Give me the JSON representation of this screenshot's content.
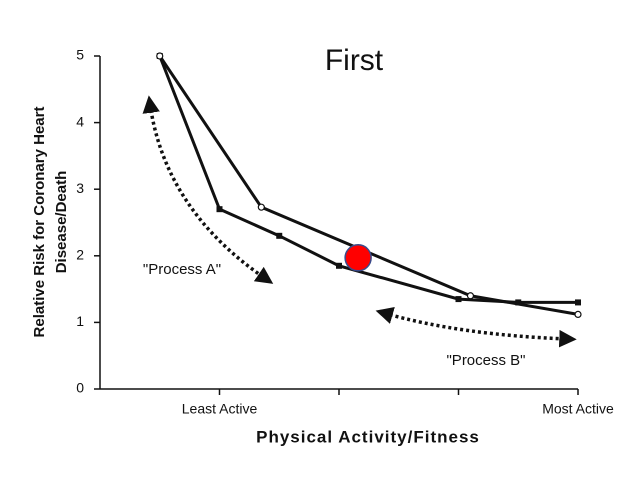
{
  "chart_data": {
    "type": "line",
    "title": "First",
    "xlabel": "Physical Activity/Fitness",
    "ylabel": [
      "Relative Risk for Coronary Heart",
      "Disease/Death"
    ],
    "xlim": [
      0,
      4
    ],
    "ylim": [
      0,
      5
    ],
    "xticks": [
      {
        "value": 1,
        "label": "Least Active"
      },
      {
        "value": 2,
        "label": null
      },
      {
        "value": 3,
        "label": null
      },
      {
        "value": 4,
        "label": "Most Active"
      }
    ],
    "yticks": [
      0,
      1,
      2,
      3,
      4,
      5
    ],
    "series": [
      {
        "marker": "square",
        "color": "#111111",
        "x": [
          0.5,
          1,
          1.5,
          2,
          3,
          3.5,
          4
        ],
        "values": [
          5,
          2.7,
          2.3,
          1.85,
          1.35,
          1.3,
          1.3
        ]
      },
      {
        "marker": "open-circle",
        "color": "#111111",
        "x": [
          0.5,
          1.35,
          3.1,
          4
        ],
        "values": [
          5,
          2.73,
          1.4,
          1.12
        ]
      }
    ],
    "highlight": {
      "x": 2.16,
      "y": 1.97,
      "color": "#ff0000"
    },
    "annotations": [
      "\"Process A\"",
      "\"Process B\""
    ]
  }
}
